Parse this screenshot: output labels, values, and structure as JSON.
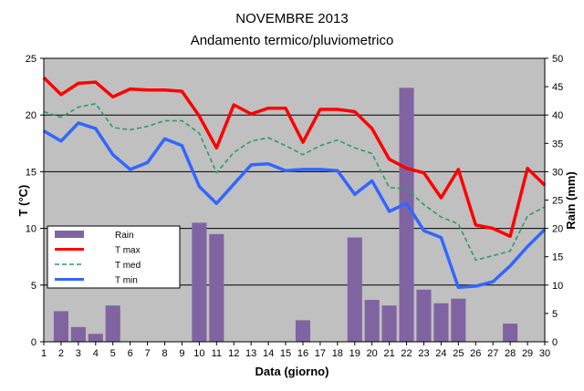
{
  "chart_data": {
    "type": "bar+line",
    "title": "NOVEMBRE 2013",
    "subtitle": "Andamento termico/pluviometrico",
    "xlabel": "Data (giorno)",
    "ylabel_left": "T (°C)",
    "ylabel_right": "Rain (mm)",
    "x": [
      1,
      2,
      3,
      4,
      5,
      6,
      7,
      8,
      9,
      10,
      11,
      12,
      13,
      14,
      15,
      16,
      17,
      18,
      19,
      20,
      21,
      22,
      23,
      24,
      25,
      26,
      27,
      28,
      29,
      30
    ],
    "xlim": [
      1,
      30
    ],
    "ylim_left": [
      0,
      25
    ],
    "yticks_left": [
      0,
      5,
      10,
      15,
      20,
      25
    ],
    "ylim_right": [
      0,
      50
    ],
    "yticks_right": [
      0,
      5,
      10,
      15,
      20,
      25,
      30,
      35,
      40,
      45,
      50
    ],
    "grid": true,
    "legend_position": "middle-left",
    "background_color": "#C0C0C0",
    "series": [
      {
        "name": "Rain",
        "kind": "bar",
        "axis": "right",
        "color": "#8064A2",
        "values": [
          0,
          5.4,
          2.6,
          1.4,
          6.4,
          0,
          0,
          0,
          0,
          21,
          19,
          0,
          0,
          0,
          0,
          3.8,
          0,
          0,
          18.4,
          7.4,
          6.4,
          44.8,
          9.2,
          6.8,
          7.6,
          0,
          0,
          3.2,
          0,
          0
        ]
      },
      {
        "name": "T max",
        "kind": "line",
        "axis": "left",
        "color": "#FF0000",
        "style": "solid",
        "values": [
          23.3,
          21.8,
          22.8,
          22.9,
          21.6,
          22.3,
          22.2,
          22.2,
          22.1,
          19.9,
          17.1,
          20.9,
          20.1,
          20.6,
          20.6,
          17.6,
          20.5,
          20.5,
          20.3,
          18.8,
          16.1,
          15.3,
          14.9,
          12.7,
          15.2,
          10.3,
          10.0,
          9.3,
          15.3,
          13.8
        ]
      },
      {
        "name": "T med",
        "kind": "line",
        "axis": "left",
        "color": "#339966",
        "style": "dashed",
        "values": [
          20.3,
          19.8,
          20.7,
          21.0,
          18.9,
          18.7,
          19.0,
          19.5,
          19.5,
          18.4,
          14.9,
          16.7,
          17.7,
          18.0,
          17.3,
          16.5,
          17.3,
          17.8,
          17.1,
          16.6,
          13.6,
          13.5,
          12.1,
          11.0,
          10.4,
          7.2,
          7.6,
          8.0,
          11.1,
          11.9
        ]
      },
      {
        "name": "T min",
        "kind": "line",
        "axis": "left",
        "color": "#3366FF",
        "style": "solid",
        "values": [
          18.6,
          17.7,
          19.3,
          18.8,
          16.5,
          15.2,
          15.8,
          17.9,
          17.3,
          13.7,
          12.2,
          13.9,
          15.6,
          15.7,
          15.1,
          15.2,
          15.2,
          15.1,
          13.0,
          14.2,
          11.5,
          12.2,
          9.8,
          9.2,
          4.8,
          4.9,
          5.3,
          6.7,
          8.4,
          9.9
        ]
      }
    ]
  }
}
